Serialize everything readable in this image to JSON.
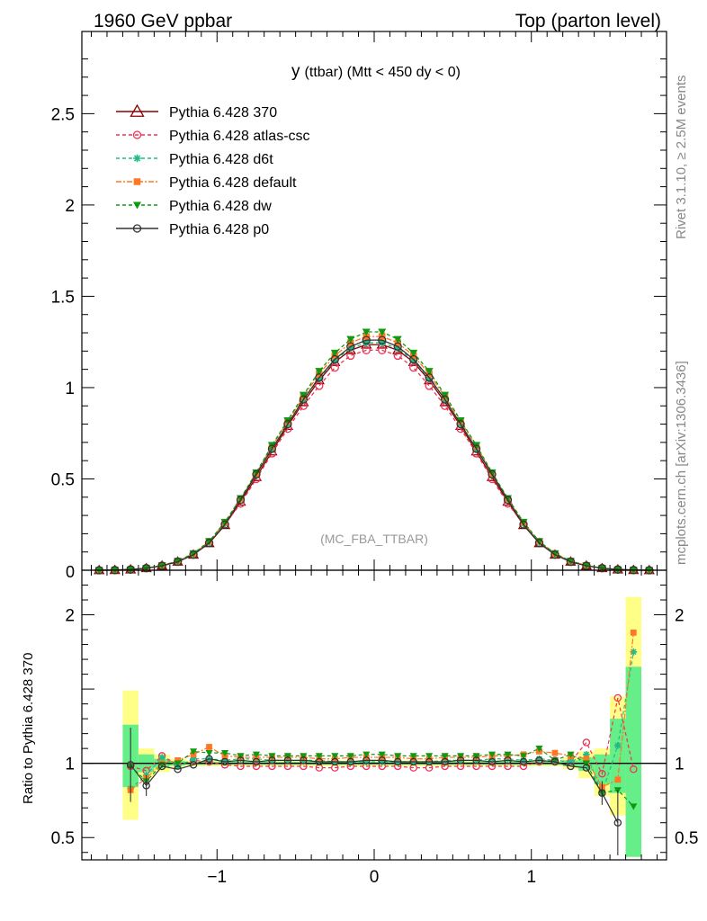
{
  "header": {
    "left": "1960 GeV ppbar",
    "right": "Top (parton level)"
  },
  "side_labels": {
    "rivet": "Rivet 3.1.10, ≥ 2.5M events",
    "mcplots": "mcplots.cern.ch [arXiv:1306.3436]"
  },
  "chart_data": [
    {
      "type": "line",
      "title": "y (ttbar) (Mtt < 450 dy < 0)",
      "title_parts": {
        "main": "y",
        "rest": "(ttbar) (Mtt < 450 dy < 0)"
      },
      "annotation": "(MC_FBA_TTBAR)",
      "xlim": [
        -1.86,
        1.86
      ],
      "ylim": [
        0,
        2.95
      ],
      "yticks": [
        {
          "v": 0.5,
          "label": "0.5"
        },
        {
          "v": 1,
          "label": "1"
        },
        {
          "v": 1.5,
          "label": "1.5"
        },
        {
          "v": 2,
          "label": "2"
        },
        {
          "v": 2.5,
          "label": "2.5"
        }
      ],
      "y0_label": "0",
      "legend_position": "top-left",
      "x": [
        -1.75,
        -1.65,
        -1.55,
        -1.45,
        -1.35,
        -1.25,
        -1.15,
        -1.05,
        -0.95,
        -0.85,
        -0.75,
        -0.65,
        -0.55,
        -0.45,
        -0.35,
        -0.25,
        -0.15,
        -0.05,
        0.05,
        0.15,
        0.25,
        0.35,
        0.45,
        0.55,
        0.65,
        0.75,
        0.85,
        0.95,
        1.05,
        1.15,
        1.25,
        1.35,
        1.45,
        1.55,
        1.65,
        1.75
      ],
      "series": [
        {
          "name": "Pythia 6.428 370",
          "color": "#8b0000",
          "dash": "",
          "marker": "triangle-open",
          "values": [
            0.0,
            0.001,
            0.004,
            0.011,
            0.025,
            0.047,
            0.085,
            0.148,
            0.247,
            0.375,
            0.51,
            0.65,
            0.79,
            0.92,
            1.04,
            1.14,
            1.205,
            1.235,
            1.235,
            1.205,
            1.14,
            1.04,
            0.92,
            0.79,
            0.65,
            0.51,
            0.375,
            0.247,
            0.148,
            0.085,
            0.047,
            0.025,
            0.011,
            0.004,
            0.001,
            0.0
          ]
        },
        {
          "name": "Pythia 6.428 atlas-csc",
          "color": "#ee3355",
          "dash": "4,3",
          "marker": "circle-open",
          "values": [
            0.0,
            0.001,
            0.004,
            0.012,
            0.026,
            0.048,
            0.087,
            0.15,
            0.252,
            0.365,
            0.5,
            0.64,
            0.775,
            0.9,
            1.01,
            1.11,
            1.175,
            1.205,
            1.205,
            1.175,
            1.11,
            1.01,
            0.9,
            0.775,
            0.64,
            0.5,
            0.365,
            0.252,
            0.15,
            0.087,
            0.048,
            0.026,
            0.012,
            0.004,
            0.001,
            0.0
          ]
        },
        {
          "name": "Pythia 6.428 d6t",
          "color": "#22bb88",
          "dash": "4,3",
          "marker": "star",
          "values": [
            0.0,
            0.001,
            0.003,
            0.011,
            0.026,
            0.049,
            0.088,
            0.152,
            0.255,
            0.385,
            0.525,
            0.665,
            0.8,
            0.935,
            1.05,
            1.15,
            1.215,
            1.245,
            1.245,
            1.215,
            1.15,
            1.05,
            0.935,
            0.8,
            0.665,
            0.525,
            0.385,
            0.255,
            0.152,
            0.088,
            0.049,
            0.026,
            0.011,
            0.003,
            0.001,
            0.0
          ]
        },
        {
          "name": "Pythia 6.428 default",
          "color": "#ff7722",
          "dash": "6,2,2,2",
          "marker": "square",
          "values": [
            0.0,
            0.001,
            0.003,
            0.011,
            0.026,
            0.05,
            0.091,
            0.158,
            0.262,
            0.39,
            0.53,
            0.68,
            0.815,
            0.95,
            1.075,
            1.175,
            1.245,
            1.28,
            1.28,
            1.245,
            1.175,
            1.075,
            0.95,
            0.815,
            0.68,
            0.53,
            0.39,
            0.262,
            0.158,
            0.091,
            0.05,
            0.026,
            0.011,
            0.003,
            0.001,
            0.0
          ]
        },
        {
          "name": "Pythia 6.428 dw",
          "color": "#119911",
          "dash": "4,3",
          "marker": "triangle-down",
          "values": [
            0.0,
            0.001,
            0.003,
            0.011,
            0.026,
            0.05,
            0.092,
            0.158,
            0.264,
            0.394,
            0.535,
            0.685,
            0.82,
            0.96,
            1.09,
            1.19,
            1.265,
            1.305,
            1.305,
            1.265,
            1.19,
            1.09,
            0.96,
            0.82,
            0.685,
            0.535,
            0.394,
            0.264,
            0.158,
            0.092,
            0.05,
            0.026,
            0.011,
            0.003,
            0.001,
            0.0
          ]
        },
        {
          "name": "Pythia 6.428 p0",
          "color": "#333333",
          "dash": "",
          "marker": "circle-open",
          "values": [
            0.0,
            0.001,
            0.004,
            0.011,
            0.024,
            0.046,
            0.085,
            0.149,
            0.25,
            0.385,
            0.525,
            0.665,
            0.8,
            0.935,
            1.055,
            1.155,
            1.225,
            1.26,
            1.26,
            1.225,
            1.155,
            1.055,
            0.935,
            0.8,
            0.665,
            0.525,
            0.385,
            0.25,
            0.149,
            0.085,
            0.046,
            0.024,
            0.011,
            0.004,
            0.001,
            0.0
          ]
        }
      ]
    },
    {
      "type": "line",
      "ylabel": "Ratio to Pythia 6.428 370",
      "xlim": [
        -1.86,
        1.86
      ],
      "ylim": [
        0.35,
        2.3
      ],
      "yticks": [
        {
          "v": 0.5,
          "label": "0.5"
        },
        {
          "v": 1,
          "label": "1"
        },
        {
          "v": 2,
          "label": "2"
        }
      ],
      "xticks": [
        {
          "v": -1,
          "label": "−1"
        },
        {
          "v": 0,
          "label": "0"
        },
        {
          "v": 1,
          "label": "1"
        }
      ],
      "reference_line": 1,
      "x": [
        -1.55,
        -1.45,
        -1.35,
        -1.25,
        -1.15,
        -1.05,
        -0.95,
        -0.85,
        -0.75,
        -0.65,
        -0.55,
        -0.45,
        -0.35,
        -0.25,
        -0.15,
        -0.05,
        0.05,
        0.15,
        0.25,
        0.35,
        0.45,
        0.55,
        0.65,
        0.75,
        0.85,
        0.95,
        1.05,
        1.15,
        1.25,
        1.35,
        1.45,
        1.55,
        1.65
      ],
      "bands": [
        {
          "x0": -1.6,
          "x1": -1.5,
          "yellow": [
            0.62,
            1.49
          ],
          "green": [
            0.84,
            1.26
          ]
        },
        {
          "x0": -1.5,
          "x1": -1.4,
          "yellow": [
            0.9,
            1.1
          ],
          "green": [
            0.94,
            1.06
          ]
        },
        {
          "x0": -1.4,
          "x1": -1.3,
          "yellow": [
            0.94,
            1.06
          ],
          "green": [
            0.97,
            1.03
          ]
        },
        {
          "x0": -1.3,
          "x1": -1.2,
          "yellow": [
            0.97,
            1.03
          ],
          "green": [
            0.985,
            1.015
          ]
        },
        {
          "x0": -1.2,
          "x1": 1.2,
          "yellow": [
            0.98,
            1.02
          ],
          "green": [
            0.99,
            1.01
          ]
        },
        {
          "x0": 1.2,
          "x1": 1.3,
          "yellow": [
            0.96,
            1.04
          ],
          "green": [
            0.98,
            1.02
          ]
        },
        {
          "x0": 1.3,
          "x1": 1.4,
          "yellow": [
            0.9,
            1.08
          ],
          "green": [
            0.95,
            1.04
          ]
        },
        {
          "x0": 1.4,
          "x1": 1.5,
          "yellow": [
            0.78,
            1.1
          ],
          "green": [
            0.86,
            1.06
          ]
        },
        {
          "x0": 1.5,
          "x1": 1.6,
          "yellow": [
            0.65,
            1.45
          ],
          "green": [
            0.8,
            1.3
          ]
        },
        {
          "x0": 1.6,
          "x1": 1.7,
          "yellow": [
            0.37,
            2.12
          ],
          "green": [
            0.37,
            1.65
          ]
        }
      ],
      "series": [
        {
          "name": "Pythia 6.428 370",
          "values": [
            1,
            1,
            1,
            1,
            1,
            1,
            1,
            1,
            1,
            1,
            1,
            1,
            1,
            1,
            1,
            1,
            1,
            1,
            1,
            1,
            1,
            1,
            1,
            1,
            1,
            1,
            1,
            1,
            1,
            1,
            1,
            1,
            1
          ]
        },
        {
          "name": "Pythia 6.428 atlas-csc",
          "values": [
            0.98,
            0.95,
            1.05,
            0.99,
            1.02,
            1.01,
            0.99,
            0.98,
            0.98,
            0.98,
            0.98,
            0.98,
            0.97,
            0.97,
            0.98,
            0.98,
            0.98,
            0.98,
            0.97,
            0.97,
            0.98,
            0.98,
            0.98,
            0.98,
            0.98,
            0.98,
            1.01,
            1.02,
            1.01,
            1.14,
            0.93,
            1.44,
            0.96
          ]
        },
        {
          "name": "Pythia 6.428 d6t",
          "values": [
            0.83,
            0.92,
            1.04,
            0.98,
            1.03,
            1.03,
            1.02,
            1.03,
            1.03,
            1.02,
            1.02,
            1.02,
            1.02,
            1.01,
            1.01,
            1.01,
            1.01,
            1.01,
            1.01,
            1.01,
            1.02,
            1.02,
            1.02,
            1.03,
            1.03,
            1.02,
            1.03,
            1.02,
            1.01,
            1.06,
            0.8,
            1.12,
            1.75
          ]
        },
        {
          "name": "Pythia 6.428 default",
          "values": [
            0.82,
            0.9,
            1.0,
            1.02,
            1.06,
            1.11,
            1.05,
            1.04,
            1.04,
            1.04,
            1.04,
            1.04,
            1.03,
            1.03,
            1.04,
            1.04,
            1.04,
            1.04,
            1.03,
            1.03,
            1.04,
            1.04,
            1.04,
            1.05,
            1.05,
            1.06,
            1.08,
            1.07,
            1.05,
            1.03,
            0.84,
            0.89,
            1.88
          ]
        },
        {
          "name": "Pythia 6.428 dw",
          "values": [
            0.98,
            0.88,
            0.99,
            1.0,
            1.08,
            1.07,
            1.07,
            1.05,
            1.06,
            1.05,
            1.05,
            1.05,
            1.05,
            1.05,
            1.05,
            1.06,
            1.06,
            1.05,
            1.05,
            1.05,
            1.05,
            1.05,
            1.05,
            1.06,
            1.06,
            1.05,
            1.1,
            1.02,
            1.06,
            1.0,
            0.8,
            0.82,
            0.71
          ]
        },
        {
          "name": "Pythia 6.428 p0",
          "values": [
            0.99,
            0.85,
            0.98,
            0.96,
            0.99,
            1.03,
            1.01,
            1.02,
            1.01,
            1.02,
            1.02,
            1.02,
            1.01,
            1.01,
            1.01,
            1.02,
            1.02,
            1.01,
            1.01,
            1.01,
            1.01,
            1.02,
            1.02,
            1.01,
            1.02,
            1.01,
            1.02,
            1.01,
            0.98,
            0.97,
            0.8,
            0.6,
            null
          ]
        }
      ]
    }
  ]
}
